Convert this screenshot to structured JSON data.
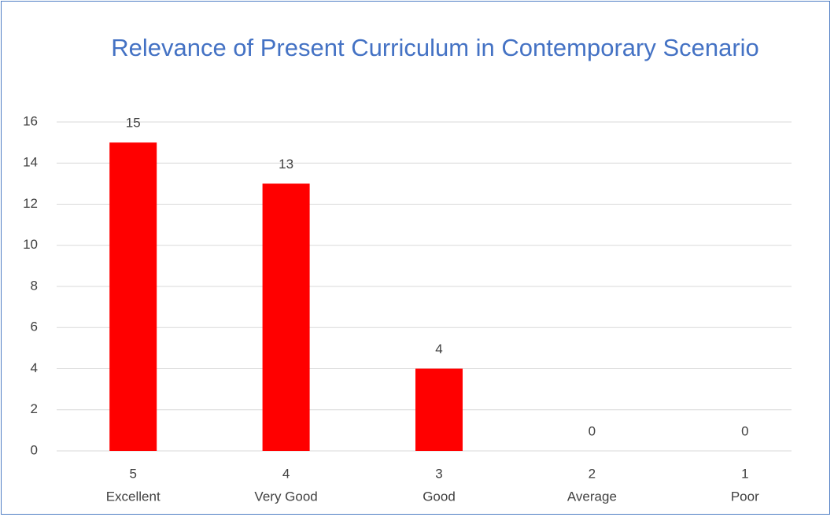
{
  "chart_data": {
    "type": "bar",
    "title": "Relevance of Present Curriculum in Contemporary Scenario",
    "categories": [
      [
        "5",
        "Excellent"
      ],
      [
        "4",
        "Very Good"
      ],
      [
        "3",
        "Good"
      ],
      [
        "2",
        "Average"
      ],
      [
        "1",
        "Poor"
      ]
    ],
    "values": [
      15,
      13,
      4,
      0,
      0
    ],
    "color": "#ff0000",
    "ylim": [
      0,
      16
    ],
    "yticks": [
      0,
      2,
      4,
      6,
      8,
      10,
      12,
      14,
      16
    ],
    "grid": true
  }
}
